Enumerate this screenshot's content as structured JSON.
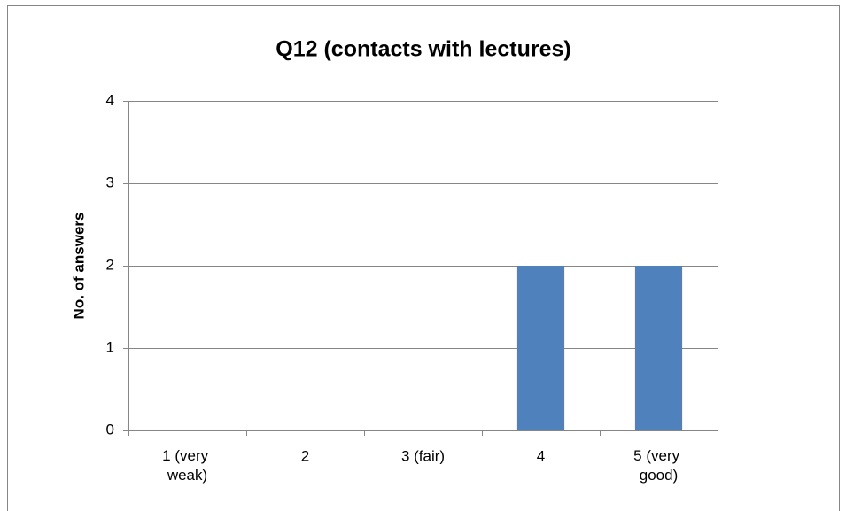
{
  "chart_data": {
    "type": "bar",
    "title": "Q12 (contacts with lectures)",
    "y_label": "No. of answers",
    "categories": [
      "1 (very weak)",
      "2",
      "3 (fair)",
      "4",
      "5 (very good)"
    ],
    "values": [
      0,
      0,
      0,
      2,
      2
    ],
    "color": "#4f81bd",
    "ylim": [
      0,
      4
    ],
    "yticks": [
      0,
      1,
      2,
      3,
      4
    ],
    "grid": true
  }
}
